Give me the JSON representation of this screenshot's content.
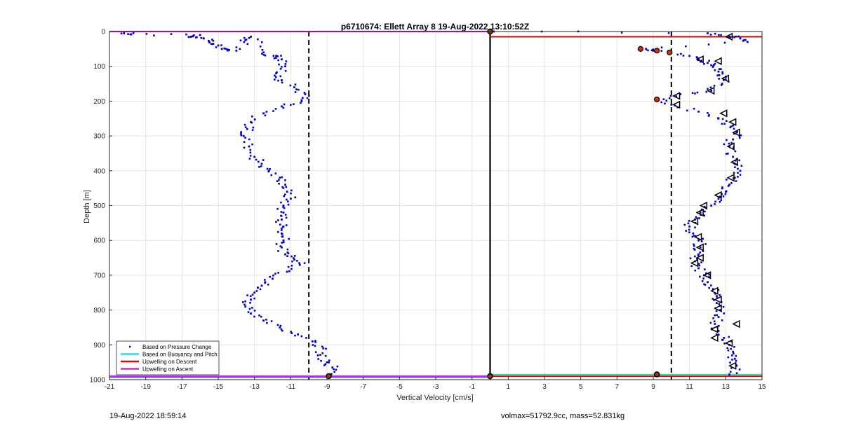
{
  "chart_data": {
    "type": "scatter",
    "title": "p6710674: Ellett Array 8 19-Aug-2022 13:10:52Z",
    "xlabel": "Vertical Velocity [cm/s]",
    "ylabel": "Depth [m]",
    "xlim": [
      -21,
      15
    ],
    "ylim": [
      0,
      1000
    ],
    "y_reversed": true,
    "grid": true,
    "xticks": [
      -21,
      -19,
      -17,
      -15,
      -13,
      -11,
      -9,
      -7,
      -5,
      -3,
      -1,
      1,
      3,
      5,
      7,
      9,
      11,
      13,
      15
    ],
    "yticks": [
      0,
      100,
      200,
      300,
      400,
      500,
      600,
      700,
      800,
      900,
      1000
    ],
    "legend_position": "bottom-left",
    "legend": [
      {
        "label": "Based on Pressure Change",
        "style": "dot",
        "color": "#0000cc"
      },
      {
        "label": "Based on Buoyancy and Pitch",
        "style": "line",
        "color": "#33d6e6"
      },
      {
        "label": "Upwelling on Descent",
        "style": "line",
        "color": "#cc1111"
      },
      {
        "label": "Upwelling on Ascent",
        "style": "line",
        "color": "#dd22dd"
      }
    ],
    "reference_lines": {
      "dashed_x": [
        -10,
        10
      ],
      "solid_x": [
        0
      ],
      "descent_upwelling_depth": [
        15,
        990
      ],
      "ascent_upwelling_depth": [
        0,
        990
      ]
    },
    "series": [
      {
        "name": "Based on Pressure Change",
        "profile": "ascent (negative velocity)",
        "points": [
          [
            -20.2,
            5
          ],
          [
            -19.8,
            8
          ],
          [
            -16,
            10
          ],
          [
            -16.5,
            15
          ],
          [
            -15.8,
            20
          ],
          [
            -15.5,
            30
          ],
          [
            -15.0,
            40
          ],
          [
            -14.8,
            50
          ],
          [
            -14.0,
            55
          ],
          [
            -13.5,
            25
          ],
          [
            -13.2,
            15
          ],
          [
            -12.5,
            60
          ],
          [
            -11.8,
            70
          ],
          [
            -11.5,
            80
          ],
          [
            -11.3,
            100
          ],
          [
            -11.8,
            120
          ],
          [
            -11.5,
            140
          ],
          [
            -10.8,
            160
          ],
          [
            -10.2,
            180
          ],
          [
            -10.4,
            200
          ],
          [
            -11.5,
            215
          ],
          [
            -12.5,
            235
          ],
          [
            -13.2,
            260
          ],
          [
            -13.4,
            280
          ],
          [
            -13.6,
            300
          ],
          [
            -13.3,
            330
          ],
          [
            -13.0,
            360
          ],
          [
            -12.6,
            380
          ],
          [
            -12.2,
            400
          ],
          [
            -11.6,
            420
          ],
          [
            -11.3,
            440
          ],
          [
            -11.2,
            460
          ],
          [
            -11.0,
            480
          ],
          [
            -11.4,
            500
          ],
          [
            -11.4,
            520
          ],
          [
            -11.5,
            540
          ],
          [
            -11.4,
            560
          ],
          [
            -11.5,
            580
          ],
          [
            -11.4,
            600
          ],
          [
            -11.5,
            620
          ],
          [
            -11.3,
            640
          ],
          [
            -10.8,
            655
          ],
          [
            -10.5,
            670
          ],
          [
            -11.2,
            690
          ],
          [
            -12.0,
            710
          ],
          [
            -12.6,
            730
          ],
          [
            -13.0,
            750
          ],
          [
            -13.2,
            770
          ],
          [
            -13.5,
            790
          ],
          [
            -13.2,
            810
          ],
          [
            -12.5,
            830
          ],
          [
            -11.6,
            850
          ],
          [
            -10.6,
            870
          ],
          [
            -9.8,
            890
          ],
          [
            -9.2,
            910
          ],
          [
            -9.5,
            930
          ],
          [
            -9.0,
            950
          ],
          [
            -8.7,
            965
          ],
          [
            -8.9,
            985
          ]
        ]
      },
      {
        "name": "Based on Pressure Change",
        "profile": "descent (positive velocity)",
        "points": [
          [
            0.2,
            0
          ],
          [
            12.0,
            5
          ],
          [
            13.2,
            15
          ],
          [
            13.8,
            20
          ],
          [
            14.2,
            30
          ],
          [
            8.2,
            50
          ],
          [
            9.0,
            55
          ],
          [
            10.0,
            60
          ],
          [
            11.0,
            70
          ],
          [
            11.5,
            80
          ],
          [
            12.0,
            90
          ],
          [
            12.3,
            100
          ],
          [
            12.6,
            115
          ],
          [
            13.0,
            130
          ],
          [
            12.8,
            150
          ],
          [
            12.2,
            170
          ],
          [
            10.5,
            180
          ],
          [
            9.3,
            195
          ],
          [
            10.0,
            210
          ],
          [
            11.5,
            230
          ],
          [
            12.6,
            250
          ],
          [
            13.4,
            270
          ],
          [
            13.6,
            290
          ],
          [
            13.4,
            310
          ],
          [
            13.2,
            330
          ],
          [
            13.4,
            360
          ],
          [
            13.5,
            380
          ],
          [
            13.8,
            400
          ],
          [
            13.5,
            420
          ],
          [
            13.2,
            440
          ],
          [
            13.0,
            460
          ],
          [
            12.6,
            480
          ],
          [
            12.2,
            500
          ],
          [
            11.6,
            520
          ],
          [
            11.3,
            540
          ],
          [
            11.0,
            560
          ],
          [
            11.2,
            580
          ],
          [
            11.5,
            600
          ],
          [
            11.6,
            620
          ],
          [
            11.5,
            640
          ],
          [
            11.3,
            660
          ],
          [
            11.5,
            680
          ],
          [
            11.8,
            700
          ],
          [
            12.0,
            720
          ],
          [
            12.3,
            740
          ],
          [
            12.5,
            760
          ],
          [
            12.5,
            780
          ],
          [
            12.7,
            800
          ],
          [
            12.6,
            820
          ],
          [
            12.4,
            840
          ],
          [
            12.6,
            860
          ],
          [
            12.9,
            880
          ],
          [
            13.2,
            900
          ],
          [
            13.4,
            920
          ],
          [
            13.5,
            940
          ],
          [
            13.6,
            960
          ],
          [
            13.2,
            985
          ]
        ]
      }
    ],
    "triangle_markers": [
      [
        13.2,
        15
      ],
      [
        12.6,
        85
      ],
      [
        11.6,
        80
      ],
      [
        13.0,
        135
      ],
      [
        12.2,
        170
      ],
      [
        10.3,
        185
      ],
      [
        10.3,
        210
      ],
      [
        12.9,
        235
      ],
      [
        13.4,
        260
      ],
      [
        13.6,
        290
      ],
      [
        13.3,
        330
      ],
      [
        13.5,
        375
      ],
      [
        13.3,
        420
      ],
      [
        12.6,
        470
      ],
      [
        11.8,
        500
      ],
      [
        11.6,
        520
      ],
      [
        11.3,
        545
      ],
      [
        11.5,
        590
      ],
      [
        11.6,
        620
      ],
      [
        11.6,
        650
      ],
      [
        11.3,
        665
      ],
      [
        12.0,
        700
      ],
      [
        12.4,
        745
      ],
      [
        12.6,
        770
      ],
      [
        12.6,
        795
      ],
      [
        12.4,
        855
      ],
      [
        12.4,
        880
      ],
      [
        13.6,
        840
      ],
      [
        13.2,
        895
      ],
      [
        13.4,
        960
      ]
    ],
    "red_markers": [
      [
        8.3,
        50
      ],
      [
        9.2,
        55
      ],
      [
        9.9,
        60
      ],
      [
        9.2,
        195
      ]
    ],
    "end_markers": [
      [
        -8.9,
        990
      ],
      [
        0.0,
        0
      ],
      [
        0.0,
        990
      ],
      [
        9.2,
        985
      ]
    ]
  },
  "footer": {
    "left": "19-Aug-2022 18:59:14",
    "right": "volmax=51792.9cc, mass=52.831kg"
  }
}
